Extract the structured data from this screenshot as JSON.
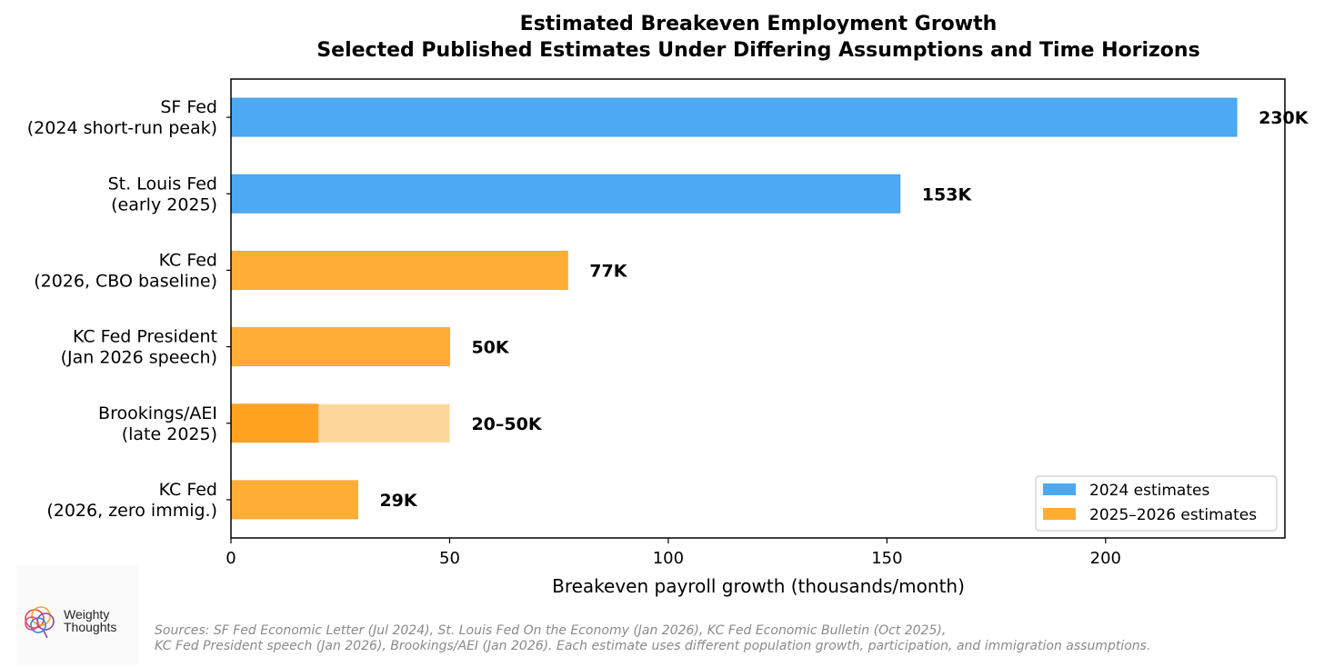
{
  "chart_data": {
    "type": "bar",
    "orientation": "horizontal",
    "title": [
      "Estimated Breakeven Employment Growth",
      "Selected Published Estimates Under Differing Assumptions and Time Horizons"
    ],
    "xlabel": "Breakeven payroll growth (thousands/month)",
    "ylabel": "",
    "xlim": [
      0,
      241
    ],
    "xticks": [
      0,
      50,
      100,
      150,
      200
    ],
    "grid": false,
    "legend_position": "bottom-right",
    "categories": [
      [
        "SF Fed",
        "(2024 short-run peak)"
      ],
      [
        "St. Louis Fed",
        "(early 2025)"
      ],
      [
        "KC Fed",
        "(2026, CBO baseline)"
      ],
      [
        "KC Fed President",
        "(Jan 2026 speech)"
      ],
      [
        "Brookings/AEI",
        "(late 2025)"
      ],
      [
        "KC Fed",
        "(2026, zero immig.)"
      ]
    ],
    "bars": [
      {
        "low": 0,
        "high": 230,
        "range_start": null,
        "series": "2024 estimates",
        "label": "230K"
      },
      {
        "low": 0,
        "high": 153,
        "range_start": null,
        "series": "2024 estimates",
        "label": "153K"
      },
      {
        "low": 0,
        "high": 77,
        "range_start": null,
        "series": "2025–2026 estimates",
        "label": "77K"
      },
      {
        "low": 0,
        "high": 50,
        "range_start": null,
        "series": "2025–2026 estimates",
        "label": "50K"
      },
      {
        "low": 0,
        "high": 50,
        "range_start": 20,
        "series": "2025–2026 estimates",
        "label": "20–50K"
      },
      {
        "low": 0,
        "high": 29,
        "range_start": null,
        "series": "2025–2026 estimates",
        "label": "29K"
      }
    ],
    "series": [
      {
        "name": "2024 estimates",
        "color": "#4da9f2"
      },
      {
        "name": "2025–2026 estimates",
        "color": "#ffad35"
      }
    ],
    "colors": {
      "solid_2025": "#ffa21f",
      "range_light": "#fdd69b",
      "bar_edge_2024": "#3d9ae8",
      "bar_edge_2025": "#f5a02a"
    }
  },
  "branding": {
    "logo_line1": "Weighty",
    "logo_line2": "Thoughts",
    "logo_icon": "overlapping-circles-logo-icon"
  },
  "sources": {
    "line1": "Sources: SF Fed Economic Letter (Jul 2024), St. Louis Fed On the Economy (Jan 2026), KC Fed Economic Bulletin (Oct 2025),",
    "line2": "KC Fed President speech (Jan 2026), Brookings/AEI (Jan 2026). Each estimate uses different population growth, participation, and immigration assumptions."
  }
}
